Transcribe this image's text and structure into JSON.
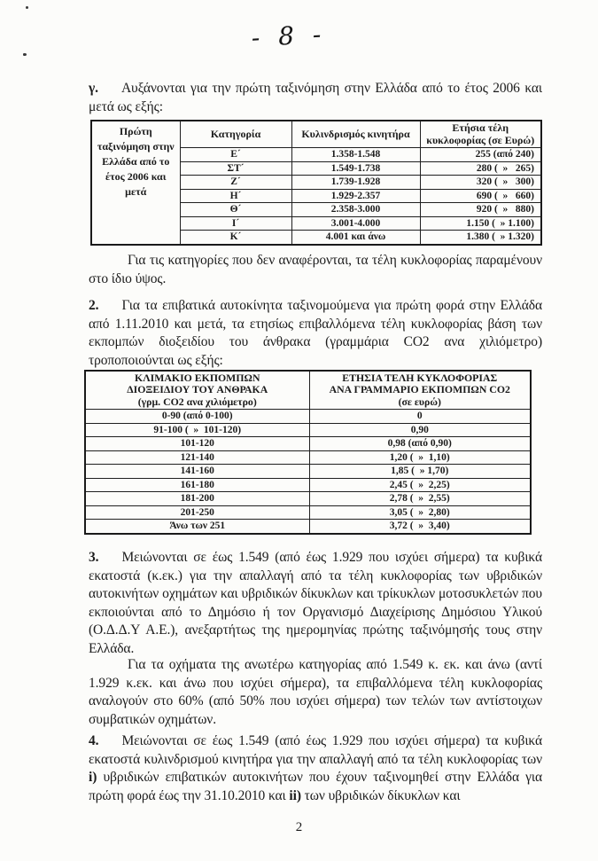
{
  "page": {
    "handwritten_page_number": "- 8 -",
    "footer_page_number": "2"
  },
  "paragraphs": {
    "gamma": {
      "num": "γ.",
      "text": "Αυξάνονται για την πρώτη ταξινόμηση στην Ελλάδα από το έτος 2006 και μετά ως εξής:"
    },
    "categories_note": "Για τις κατηγορίες που δεν αναφέρονται, τα τέλη κυκλοφορίας παραμένουν στο ίδιο ύψος.",
    "p2": {
      "num": "2.",
      "text": "Για τα επιβατικά αυτοκίνητα ταξινομούμενα για πρώτη φορά στην Ελλάδα από 1.11.2010 και μετά, τα ετησίως επιβαλλόμενα τέλη κυκλοφορίας βάση των εκπομπών διοξειδίου του άνθρακα (γραμμάρια CO2 ανα χιλιόμετρο) τροποποιούνται ως εξής:"
    },
    "p3": {
      "num": "3.",
      "text": "Μειώνονται σε έως 1.549 (από έως 1.929 που ισχύει σήμερα) τα κυβικά εκατοστά (κ.εκ.) για την απαλλαγή από τα τέλη κυκλοφορίας των υβριδικών αυτοκινήτων οχημάτων και υβριδικών δίκυκλων και τρίκυκλων μοτοσυκλετών που εκποιούνται από το Δημόσιο ή τον Οργανισμό Διαχείρισης Δημόσιου Υλικού (Ο.Δ.Δ.Υ Α.Ε.), ανεξαρτήτως της ημερομηνίας πρώτης ταξινόμησής τους στην Ελλάδα."
    },
    "p3_continuation": "Για τα οχήματα της ανωτέρω κατηγορίας από 1.549 κ. εκ. και άνω (αντί 1.929 κ.εκ. και άνω που ισχύει σήμερα), τα επιβαλλόμενα τέλη κυκλοφορίας αναλογούν στο 60%  (από 50% που ισχύει σήμερα) των τελών των αντίστοιχων συμβατικών οχημάτων.",
    "p4": {
      "num": "4.",
      "segments": [
        {
          "t": "Μειώνονται σε έως 1.549 (από έως 1.929 που ισχύει σήμερα) τα κυβικά εκατοστά κυλινδρισμού κινητήρα για την απαλλαγή από τα τέλη κυκλοφορίας των ",
          "b": false
        },
        {
          "t": "i)",
          "b": true
        },
        {
          "t": " υβριδικών επιβατικών αυτοκινήτων που έχουν ταξινομηθεί στην Ελλάδα για πρώτη φορά έως την 31.10.2010 και ",
          "b": false
        },
        {
          "t": "ii)",
          "b": true
        },
        {
          "t": " των υβριδικών δίκυκλων και",
          "b": false
        }
      ]
    }
  },
  "table1": {
    "row_label": "Πρώτη\nταξινόμηση στην\nΕλλάδα από το\nέτος 2006 και\nμετά",
    "headers": [
      "Κατηγορία",
      "Κυλινδρισμός κινητήρα",
      "Ετήσια τέλη\nκυκλοφορίας (σε Ευρώ)"
    ],
    "rows": [
      [
        "Ε´",
        "1.358-1.548",
        "255 (από 240)"
      ],
      [
        "ΣΤ´",
        "1.549-1.738",
        "280 (  »   265)"
      ],
      [
        "Ζ´",
        "1.739-1.928",
        "320 (  »   300)"
      ],
      [
        "Η´",
        "1.929-2.357",
        "690 (  »   660)"
      ],
      [
        "Θ´",
        "2.358-3.000",
        "920 (  »   880)"
      ],
      [
        "Ι´",
        "3.001-4.000",
        "1.150 (  » 1.100)"
      ],
      [
        "Κ´",
        "4.001 και άνω",
        "1.380 (  » 1.320)"
      ]
    ]
  },
  "table2": {
    "headers": [
      "ΚΛΙΜΑΚΙΟ ΕΚΠΟΜΠΩΝ\nΔΙΟΞΕΙΔΙΟΥ ΤΟΥ ΑΝΘΡΑΚΑ\n(γρμ. CO2 ανα χιλιόμετρο)",
      "ΕΤΗΣΙΑ ΤΕΛΗ ΚΥΚΛΟΦΟΡΙΑΣ\nΑΝΑ ΓΡΑΜΜΑΡΙΟ ΕΚΠΟΜΠΩΝ CO2\n(σε ευρώ)"
    ],
    "rows": [
      [
        "0-90 (από 0-100)",
        "0"
      ],
      [
        "91-100 (  »  101-120)",
        "0,90"
      ],
      [
        "101-120",
        "0,98 (από 0,90)"
      ],
      [
        "121-140",
        "1,20 (  »  1,10)"
      ],
      [
        "141-160",
        "1,85 (  » 1,70)"
      ],
      [
        "161-180",
        "2,45 (  »  2,25)"
      ],
      [
        "181-200",
        "2,78 (  »  2,55)"
      ],
      [
        "201-250",
        "3,05 (  »  2,80)"
      ],
      [
        "Άνω των 251",
        "3,72 (  »  3,40)"
      ]
    ]
  }
}
